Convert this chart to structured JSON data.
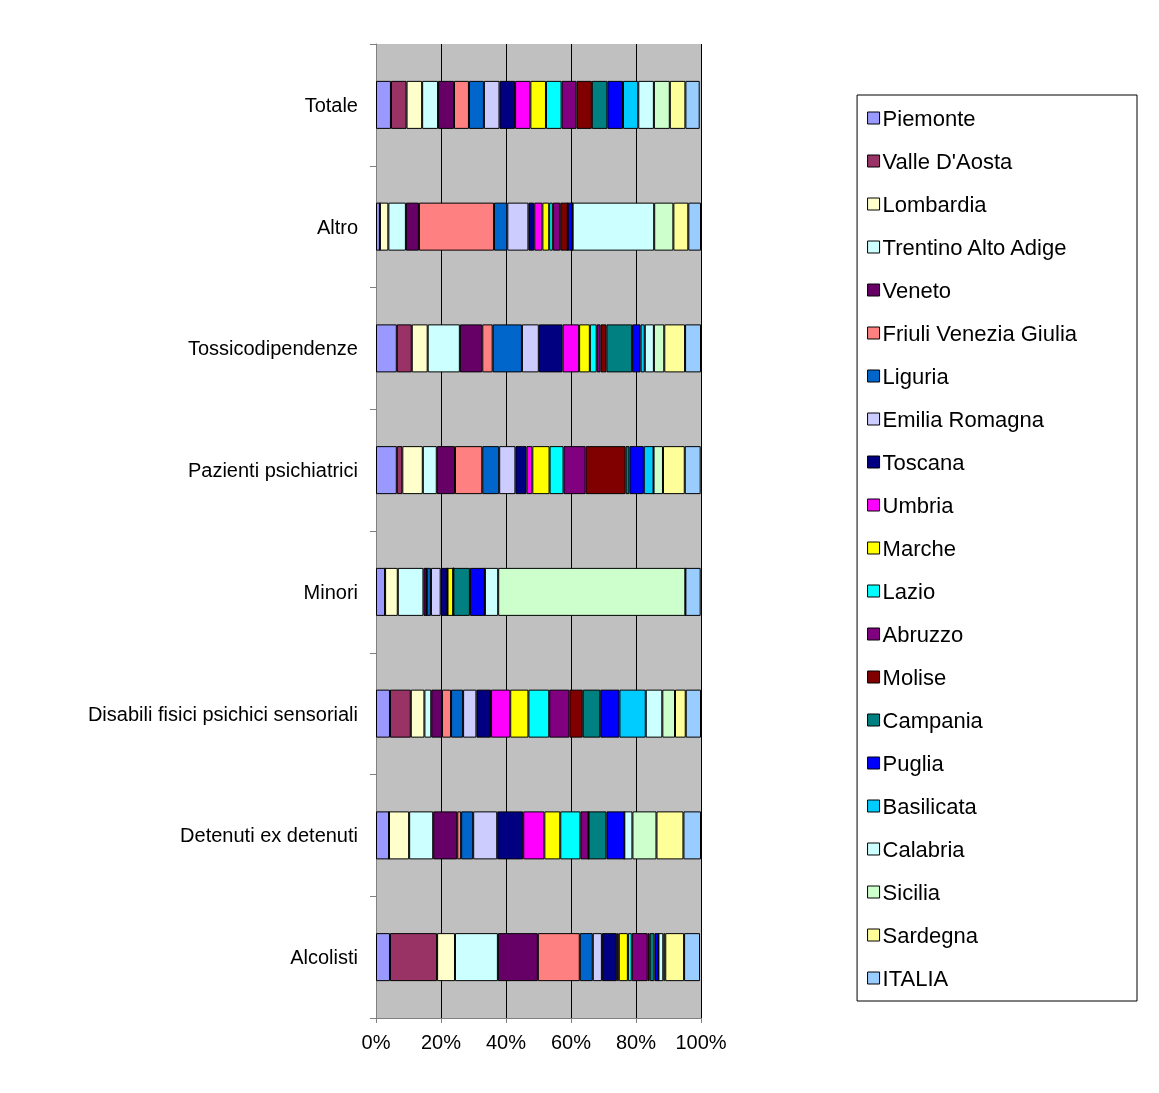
{
  "chart_data": {
    "type": "bar",
    "orientation": "horizontal",
    "stacked": true,
    "categories": [
      "Totale",
      "Altro",
      "Tossicodipendenze",
      "Pazienti psichiatrici",
      "Minori",
      "Disabili fisici psichici sensoriali",
      "Detenuti ex detenuti",
      "Alcolisti"
    ],
    "xlim": [
      0,
      100
    ],
    "xticks": [
      {
        "value": 0,
        "label": "0%"
      },
      {
        "value": 20,
        "label": "20%"
      },
      {
        "value": 40,
        "label": "40%"
      },
      {
        "value": 60,
        "label": "60%"
      },
      {
        "value": 80,
        "label": "80%"
      },
      {
        "value": 100,
        "label": "100%"
      }
    ],
    "grid": "x",
    "legend": "right",
    "series": [
      {
        "name": "Piemonte",
        "color": "#9999ff",
        "values": [
          4.6,
          1.2,
          6.4,
          6.4,
          2.8,
          4.3,
          4.0,
          4.3
        ]
      },
      {
        "name": "Valle D'Aosta",
        "color": "#993366",
        "values": [
          4.8,
          0,
          4.6,
          1.7,
          0,
          6.4,
          0,
          14.5
        ]
      },
      {
        "name": "Lombardia",
        "color": "#ffffcc",
        "values": [
          4.8,
          2.6,
          4.9,
          6.3,
          3.9,
          4.2,
          6.2,
          5.5
        ]
      },
      {
        "name": "Trentino Alto Adige",
        "color": "#ccffff",
        "values": [
          4.9,
          5.4,
          9.9,
          4.3,
          7.9,
          2.1,
          7.4,
          13.2
        ]
      },
      {
        "name": "Veneto",
        "color": "#660066",
        "values": [
          4.9,
          4.0,
          6.9,
          5.6,
          1.0,
          3.3,
          7.4,
          12.3
        ]
      },
      {
        "name": "Friuli Venezia Giulia",
        "color": "#ff8080",
        "values": [
          4.6,
          23.1,
          3.2,
          8.4,
          0,
          2.8,
          1.2,
          12.9
        ]
      },
      {
        "name": "Liguria",
        "color": "#0066cc",
        "values": [
          4.6,
          4.1,
          9.0,
          5.2,
          1.3,
          3.7,
          3.7,
          4.0
        ]
      },
      {
        "name": "Emilia Romagna",
        "color": "#ccccff",
        "values": [
          4.8,
          6.5,
          5.2,
          5.0,
          3.0,
          4.1,
          7.4,
          2.8
        ]
      },
      {
        "name": "Toscana",
        "color": "#000080",
        "values": [
          4.8,
          1.8,
          7.3,
          3.4,
          2.1,
          4.5,
          8.0,
          4.6
        ]
      },
      {
        "name": "Umbria",
        "color": "#ff00ff",
        "values": [
          4.7,
          2.5,
          5.1,
          1.8,
          0,
          5.9,
          6.5,
          0.6
        ]
      },
      {
        "name": "Marche",
        "color": "#ffff00",
        "values": [
          4.8,
          2.1,
          3.3,
          5.3,
          1.8,
          5.6,
          4.9,
          2.8
        ]
      },
      {
        "name": "Lazio",
        "color": "#00ffff",
        "values": [
          4.8,
          1.1,
          2.1,
          4.3,
          0,
          6.4,
          6.2,
          1.2
        ]
      },
      {
        "name": "Abruzzo",
        "color": "#800080",
        "values": [
          4.6,
          2.3,
          1.2,
          6.8,
          0,
          6.2,
          2.5,
          4.9
        ]
      },
      {
        "name": "Molise",
        "color": "#800000",
        "values": [
          4.7,
          2.3,
          1.8,
          12.3,
          0,
          4.1,
          0,
          0.6
        ]
      },
      {
        "name": "Campania",
        "color": "#008080",
        "values": [
          4.8,
          0,
          7.9,
          1.2,
          5.1,
          5.4,
          5.5,
          1.5
        ]
      },
      {
        "name": "Puglia",
        "color": "#0000ff",
        "values": [
          4.8,
          1.5,
          2.6,
          4.4,
          4.6,
          5.9,
          5.5,
          1.2
        ]
      },
      {
        "name": "Basilicata",
        "color": "#00ccff",
        "values": [
          4.7,
          0,
          1.3,
          3.0,
          0,
          8.1,
          0,
          0
        ]
      },
      {
        "name": "Calabria",
        "color": "#ccffff",
        "values": [
          4.8,
          25.1,
          2.8,
          0,
          4.1,
          5.1,
          2.5,
          1.5
        ]
      },
      {
        "name": "Sicilia",
        "color": "#ccffcc",
        "values": [
          4.9,
          5.9,
          3.2,
          2.9,
          57.6,
          3.9,
          7.4,
          0.6
        ]
      },
      {
        "name": "Sardegna",
        "color": "#ffff99",
        "values": [
          4.8,
          4.6,
          6.4,
          6.7,
          0,
          3.3,
          8.3,
          5.8
        ]
      },
      {
        "name": "ITALIA",
        "color": "#99ccff",
        "values": [
          4.4,
          3.9,
          4.9,
          4.9,
          4.7,
          4.7,
          5.4,
          4.9
        ]
      }
    ]
  }
}
